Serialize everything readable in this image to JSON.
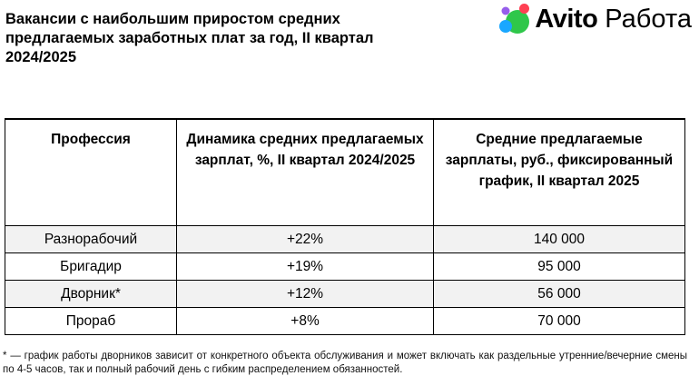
{
  "title": "Вакансии с наибольшим приростом средних предлагаемых заработных плат за год, II квартал 2024/2025",
  "logo": {
    "brand": "Avito",
    "product": "Работа"
  },
  "table": {
    "headers": [
      "Профессия",
      "Динамика средних предлагаемых зарплат, %, II квартал 2024/2025",
      "Средние предлагаемые зарплаты, руб., фиксированный график,  II квартал 2025"
    ],
    "rows": [
      {
        "profession": "Разнорабочий",
        "change": "+22%",
        "salary": "140 000"
      },
      {
        "profession": "Бригадир",
        "change": "+19%",
        "salary": "95 000"
      },
      {
        "profession": "Дворник*",
        "change": "+12%",
        "salary": "56 000"
      },
      {
        "profession": "Прораб",
        "change": "+8%",
        "salary": "70 000"
      }
    ]
  },
  "footnote": "* — график работы дворников зависит от конкретного объекта обслуживания и может включать как раздельные утренние/вечерние смены по 4-5 часов, так и полный рабочий день с гибким распределением обязанностей.",
  "colors": {
    "logo_dot_green": "#2fc74a",
    "logo_dot_blue": "#1aa7ff",
    "logo_dot_red": "#ff4053",
    "logo_dot_purple": "#965eeb",
    "row_shade": "#f2f2f2"
  }
}
